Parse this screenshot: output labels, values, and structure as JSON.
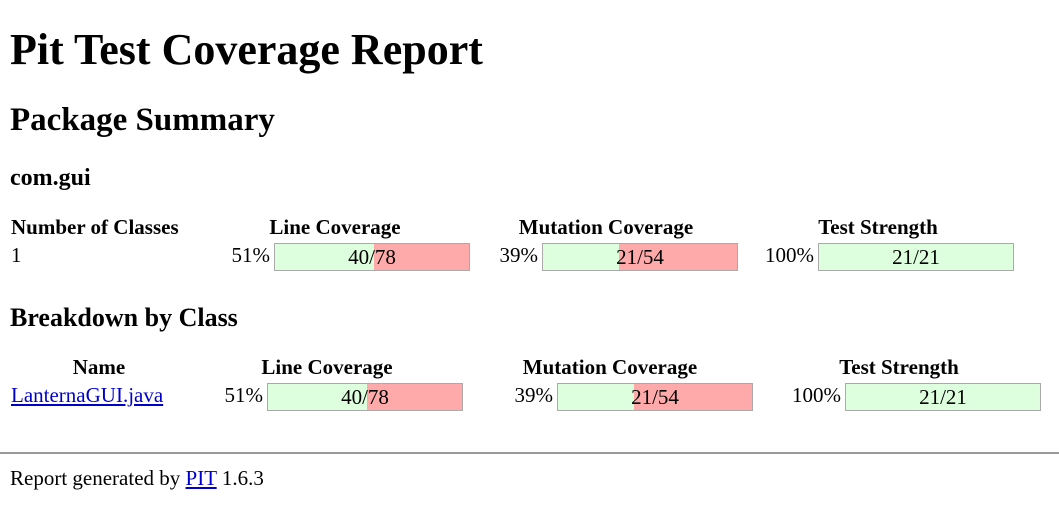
{
  "title": "Pit Test Coverage Report",
  "package_summary_heading": "Package Summary",
  "package_name": "com.gui",
  "package_table": {
    "headers": {
      "classes": "Number of Classes",
      "line": "Line Coverage",
      "mutation": "Mutation Coverage",
      "strength": "Test Strength"
    },
    "row": {
      "classes": "1",
      "line_pct": "51%",
      "line_legend": "40/78",
      "line_fraction": 0.51,
      "mutation_pct": "39%",
      "mutation_legend": "21/54",
      "mutation_fraction": 0.39,
      "strength_pct": "100%",
      "strength_legend": "21/21",
      "strength_fraction": 1.0
    }
  },
  "breakdown_heading": "Breakdown by Class",
  "class_table": {
    "headers": {
      "name": "Name",
      "line": "Line Coverage",
      "mutation": "Mutation Coverage",
      "strength": "Test Strength"
    },
    "rows": [
      {
        "name": "LanternaGUI.java",
        "line_pct": "51%",
        "line_legend": "40/78",
        "line_fraction": 0.51,
        "mutation_pct": "39%",
        "mutation_legend": "21/54",
        "mutation_fraction": 0.39,
        "strength_pct": "100%",
        "strength_legend": "21/21",
        "strength_fraction": 1.0
      }
    ]
  },
  "footer": {
    "prefix": "Report generated by ",
    "link": "PIT",
    "version": " 1.6.3"
  },
  "colors": {
    "covered": "#ddffdd",
    "uncovered": "#ffaaaa",
    "link": "#0000cc"
  }
}
